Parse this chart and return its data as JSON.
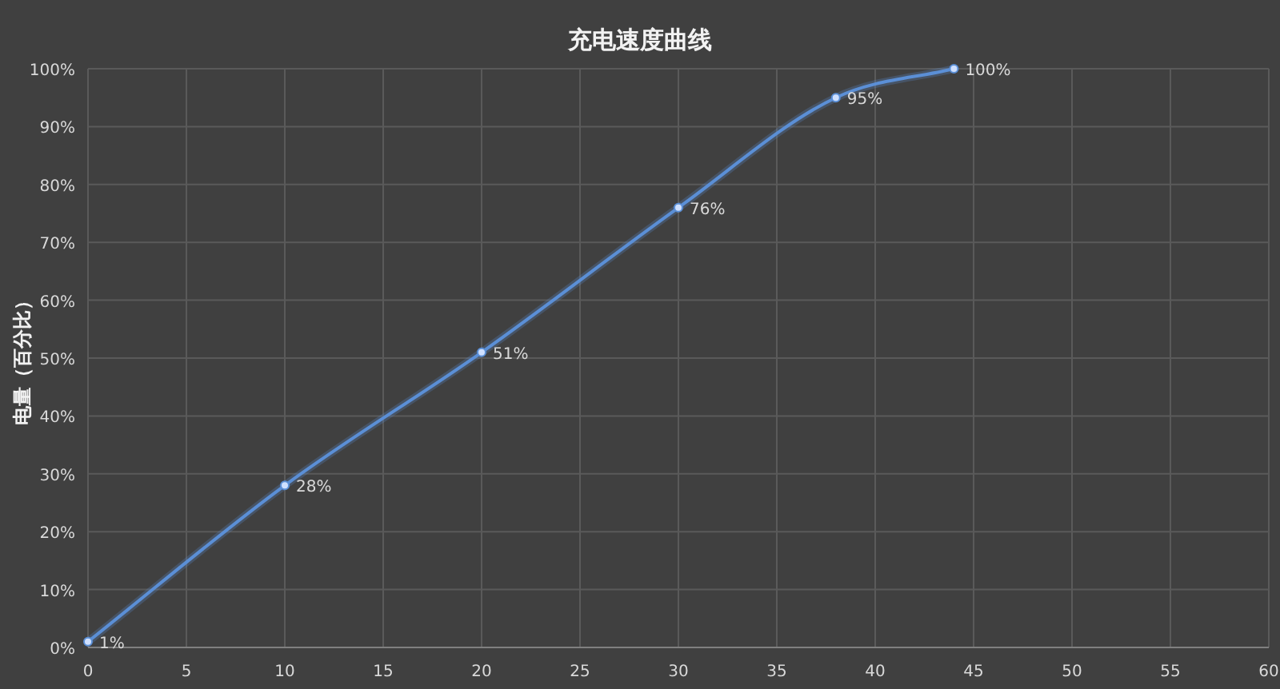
{
  "chart_data": {
    "type": "line",
    "title": "充电速度曲线",
    "ylabel": "电量（百分比）",
    "x": [
      0,
      10,
      20,
      30,
      38,
      44
    ],
    "series": [
      {
        "color": "#5b8fd6",
        "values": [
          1,
          28,
          51,
          76,
          95,
          100
        ],
        "value_labels": [
          "1%",
          "28%",
          "51%",
          "76%",
          "95%",
          "100%"
        ]
      }
    ],
    "xlim": [
      0,
      60
    ],
    "ylim": [
      0,
      100
    ],
    "xticks": [
      0,
      5,
      10,
      15,
      20,
      25,
      30,
      35,
      40,
      45,
      50,
      55,
      60
    ],
    "yticks": [
      {
        "value": 0,
        "label": "0%"
      },
      {
        "value": 10,
        "label": "10%"
      },
      {
        "value": 20,
        "label": "20%"
      },
      {
        "value": 30,
        "label": "30%"
      },
      {
        "value": 40,
        "label": "40%"
      },
      {
        "value": 50,
        "label": "50%"
      },
      {
        "value": 60,
        "label": "60%"
      },
      {
        "value": 70,
        "label": "70%"
      },
      {
        "value": 80,
        "label": "80%"
      },
      {
        "value": 90,
        "label": "90%"
      },
      {
        "value": 100,
        "label": "100%"
      }
    ],
    "grid": true,
    "marker": "circle",
    "line_style": "solid"
  }
}
